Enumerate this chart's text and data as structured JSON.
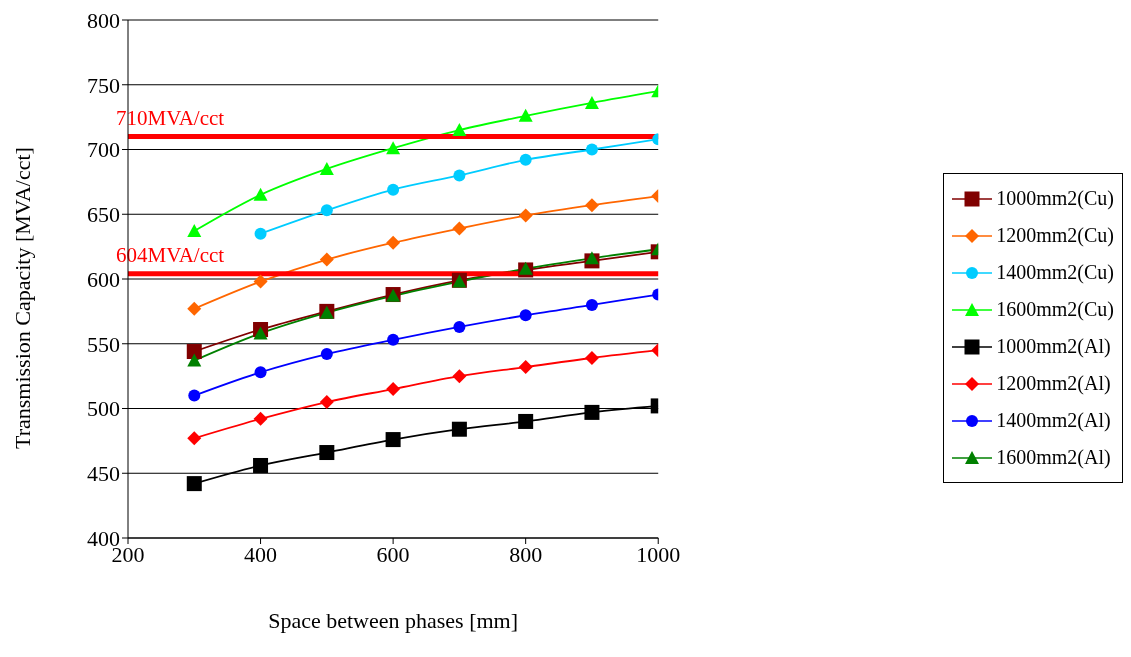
{
  "chart_data": {
    "type": "line",
    "xlabel": "Space between phases [mm]",
    "ylabel": "Transmission Capacity [MVA/cct]",
    "x": [
      300,
      400,
      500,
      600,
      700,
      800,
      900,
      1000
    ],
    "series": [
      {
        "name": "1000mm2(Cu)",
        "color": "#800000",
        "marker": "square",
        "values": [
          544,
          561,
          575,
          588,
          599,
          607,
          614,
          621
        ]
      },
      {
        "name": "1200mm2(Cu)",
        "color": "#ff6600",
        "marker": "diamond",
        "values": [
          577,
          598,
          615,
          628,
          639,
          649,
          657,
          664
        ]
      },
      {
        "name": "1400mm2(Cu)",
        "color": "#00ccff",
        "marker": "circle",
        "values": [
          null,
          635,
          653,
          669,
          680,
          692,
          700,
          708
        ]
      },
      {
        "name": "1600mm2(Cu)",
        "color": "#00ff00",
        "marker": "triangle",
        "values": [
          637,
          665,
          685,
          701,
          715,
          726,
          736,
          745
        ]
      },
      {
        "name": "1000mm2(Al)",
        "color": "#000000",
        "marker": "square",
        "values": [
          442,
          456,
          466,
          476,
          484,
          490,
          497,
          502
        ]
      },
      {
        "name": "1200mm2(Al)",
        "color": "#ff0000",
        "marker": "diamond",
        "values": [
          477,
          492,
          505,
          515,
          525,
          532,
          539,
          545
        ]
      },
      {
        "name": "1400mm2(Al)",
        "color": "#0000ff",
        "marker": "circle",
        "values": [
          510,
          528,
          542,
          553,
          563,
          572,
          580,
          588
        ]
      },
      {
        "name": "1600mm2(Al)",
        "color": "#008000",
        "marker": "triangle",
        "values": [
          537,
          558,
          574,
          587,
          598,
          608,
          616,
          623
        ]
      }
    ],
    "ref_lines": [
      {
        "axis": "y",
        "value": 710,
        "label": "710MVA/cct",
        "color": "#ff0000"
      },
      {
        "axis": "y",
        "value": 604,
        "label": "604MVA/cct",
        "color": "#ff0000"
      }
    ],
    "xlim": [
      200,
      1000
    ],
    "xticks": [
      200,
      400,
      600,
      800,
      1000
    ],
    "ylim": [
      400,
      800
    ],
    "yticks": [
      400,
      450,
      500,
      550,
      600,
      650,
      700,
      750,
      800
    ],
    "grid": "y",
    "legend": "right",
    "line_style": "solid"
  }
}
